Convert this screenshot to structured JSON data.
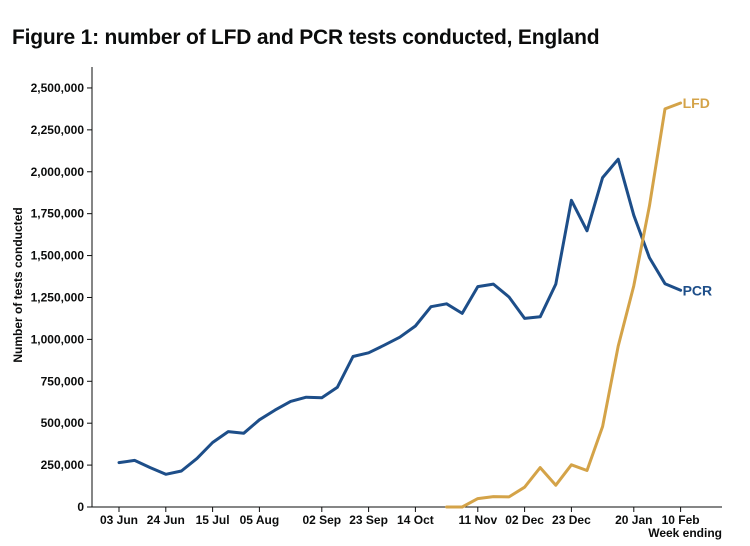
{
  "title": "Figure 1: number of LFD and PCR tests conducted, England",
  "chart_data": {
    "type": "line",
    "ylabel": "Number of tests conducted",
    "xlabel": "Week ending",
    "ylim": [
      0,
      2625000
    ],
    "yticks": [
      0,
      250000,
      500000,
      750000,
      1000000,
      1250000,
      1500000,
      1750000,
      2000000,
      2250000,
      2500000
    ],
    "ytick_labels": [
      "0",
      "250,000",
      "500,000",
      "750,000",
      "1,000,000",
      "1,250,000",
      "1,500,000",
      "1,750,000",
      "2,000,000",
      "2,250,000",
      "2,500,000"
    ],
    "xticks": [
      {
        "index": 0,
        "label": "03 Jun"
      },
      {
        "index": 3,
        "label": "24 Jun"
      },
      {
        "index": 6,
        "label": "15 Jul"
      },
      {
        "index": 9,
        "label": "05 Aug"
      },
      {
        "index": 13,
        "label": "02 Sep"
      },
      {
        "index": 16,
        "label": "23 Sep"
      },
      {
        "index": 19,
        "label": "14 Oct"
      },
      {
        "index": 23,
        "label": "11 Nov"
      },
      {
        "index": 26,
        "label": "02 Dec"
      },
      {
        "index": 29,
        "label": "23 Dec"
      },
      {
        "index": 33,
        "label": "20 Jan"
      },
      {
        "index": 36,
        "label": "10 Feb"
      }
    ],
    "grid": false,
    "series": [
      {
        "name": "PCR",
        "color": "#1d4e89",
        "start_index": 0,
        "values": [
          265000,
          278000,
          235000,
          195000,
          215000,
          290000,
          385000,
          450000,
          440000,
          520000,
          578000,
          630000,
          655000,
          652000,
          715000,
          898000,
          920000,
          965000,
          1013000,
          1080000,
          1195000,
          1212000,
          1155000,
          1315000,
          1330000,
          1253000,
          1125000,
          1135000,
          1330000,
          1830000,
          1648000,
          1965000,
          2075000,
          1740000,
          1488000,
          1332000,
          1293000
        ]
      },
      {
        "name": "LFD",
        "color": "#d4a348",
        "start_index": 21,
        "values": [
          0,
          0,
          50000,
          62000,
          60000,
          118000,
          235000,
          130000,
          252000,
          218000,
          480000,
          960000,
          1320000,
          1795000,
          2375000,
          2410000
        ]
      }
    ]
  }
}
